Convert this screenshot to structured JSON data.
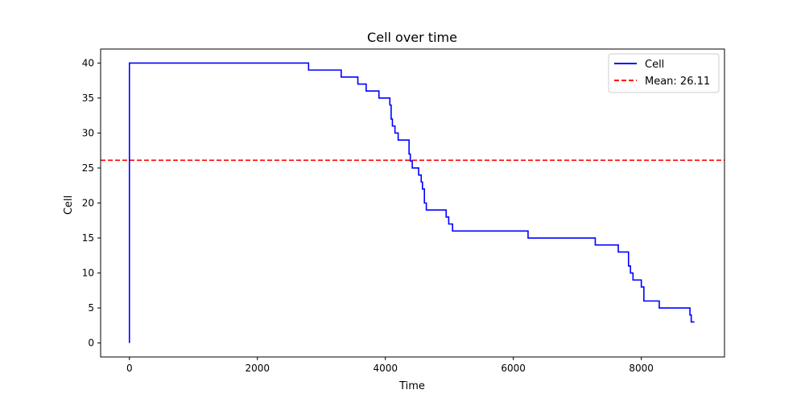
{
  "chart_data": {
    "type": "line",
    "title": "Cell over time",
    "xlabel": "Time",
    "ylabel": "Cell",
    "xlim": [
      -450,
      9300
    ],
    "ylim": [
      -2,
      42
    ],
    "xticks": [
      0,
      2000,
      4000,
      6000,
      8000
    ],
    "yticks": [
      0,
      5,
      10,
      15,
      20,
      25,
      30,
      35,
      40
    ],
    "xtick_labels": [
      "0",
      "2000",
      "4000",
      "6000",
      "8000"
    ],
    "ytick_labels": [
      "0",
      "5",
      "10",
      "15",
      "20",
      "25",
      "30",
      "35",
      "40"
    ],
    "legend_position": "top-right",
    "grid": false,
    "series": [
      {
        "name": "Cell",
        "color": "#0000ff",
        "style": "steps-post",
        "x": [
          0,
          0,
          2800,
          3310,
          3570,
          3700,
          3900,
          4070,
          4090,
          4110,
          4150,
          4200,
          4370,
          4390,
          4420,
          4520,
          4560,
          4580,
          4610,
          4640,
          4950,
          4990,
          5050,
          6230,
          7280,
          7640,
          7800,
          7830,
          7870,
          8000,
          8040,
          8280,
          8760,
          8780,
          8800,
          8830
        ],
        "y": [
          0,
          40,
          39,
          38,
          37,
          36,
          35,
          34,
          32,
          31,
          30,
          29,
          27,
          26,
          25,
          24,
          23,
          22,
          20,
          19,
          18,
          17,
          16,
          15,
          14,
          13,
          11,
          10,
          9,
          8,
          6,
          5,
          4,
          3,
          3,
          3
        ]
      }
    ],
    "reference_lines": [
      {
        "name": "Mean: 26.11",
        "value": 26.11,
        "color": "#ff0000",
        "dash": "dashed"
      }
    ]
  }
}
